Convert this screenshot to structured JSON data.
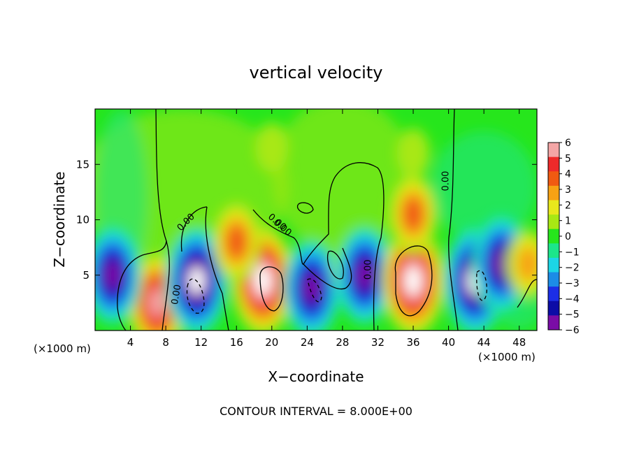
{
  "chart_data": {
    "type": "heatmap",
    "title": "vertical velocity",
    "xlabel": "X−coordinate",
    "ylabel": "Z−coordinate",
    "x_unit_left": "(×1000 m)",
    "x_unit_right": "(×1000 m)",
    "footer": "CONTOUR INTERVAL = 8.000E+00",
    "xlim": [
      0,
      50
    ],
    "ylim": [
      0,
      20
    ],
    "x_ticks": [
      4,
      8,
      12,
      16,
      20,
      24,
      28,
      32,
      36,
      40,
      44,
      48
    ],
    "y_ticks": [
      5,
      10,
      15
    ],
    "colorbar": {
      "min": -6,
      "max": 6,
      "labels": [
        "6",
        "5",
        "4",
        "3",
        "2",
        "1",
        "0",
        "−1",
        "−2",
        "−3",
        "−4",
        "−5",
        "−6"
      ],
      "colors": [
        "#f4a6a6",
        "#ee2a2a",
        "#f05a12",
        "#f7a214",
        "#e8e81c",
        "#a8e814",
        "#26e61c",
        "#1ce68a",
        "#1cd6e6",
        "#1c8ce6",
        "#1c2ee6",
        "#0c0ca6",
        "#7a0ca6"
      ]
    },
    "contour_labels": [
      "0.00",
      "0.00",
      "0.00",
      "0.00",
      "0.00",
      "0.00"
    ],
    "features": [
      {
        "x": 7.0,
        "z": 2.5,
        "w": 6
      },
      {
        "x": 2.0,
        "z": 5.0,
        "w": -6
      },
      {
        "x": 11.5,
        "z": 4.5,
        "w": -7
      },
      {
        "x": 19.0,
        "z": 4.5,
        "w": 7
      },
      {
        "x": 16.0,
        "z": 8.0,
        "w": 4
      },
      {
        "x": 24.5,
        "z": 3.8,
        "w": -6
      },
      {
        "x": 29.0,
        "z": 5.5,
        "w": 2
      },
      {
        "x": 30.5,
        "z": 5.0,
        "w": -6
      },
      {
        "x": 36.0,
        "z": 4.5,
        "w": 7
      },
      {
        "x": 36.0,
        "z": 10.5,
        "w": 4
      },
      {
        "x": 43.0,
        "z": 4.5,
        "w": -7
      },
      {
        "x": 46.0,
        "z": 6.0,
        "w": -6
      },
      {
        "x": 49.0,
        "z": 6.0,
        "w": 3
      },
      {
        "x": 20.0,
        "z": 16.5,
        "w": 1
      },
      {
        "x": 36.0,
        "z": 16.0,
        "w": 1
      }
    ]
  }
}
